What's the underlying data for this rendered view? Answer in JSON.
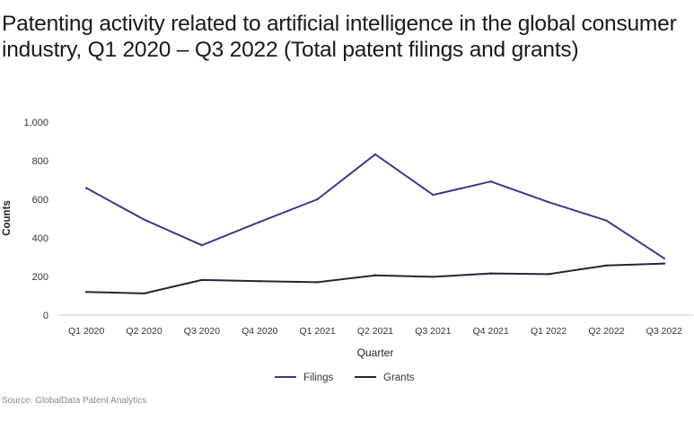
{
  "title": "Patenting activity related to artificial intelligence in the global consumer industry, Q1 2020 – Q3 2022 (Total patent filings and grants)",
  "source": "Source: GlobalData Patent Analytics",
  "chart_data": {
    "type": "line",
    "title": "Patenting activity related to artificial intelligence in the global consumer industry, Q1 2020 – Q3 2022 (Total patent filings and grants)",
    "xlabel": "Quarter",
    "ylabel": "Counts",
    "ylim": [
      0,
      1000
    ],
    "yticks": [
      0,
      200,
      400,
      600,
      800,
      1000
    ],
    "ytick_labels": [
      "0",
      "200",
      "400",
      "600",
      "800",
      "1,000"
    ],
    "grid": false,
    "legend": "bottom-center",
    "categories": [
      "Q1 2020",
      "Q2 2020",
      "Q3 2020",
      "Q4 2020",
      "Q1 2021",
      "Q2 2021",
      "Q3 2021",
      "Q4 2021",
      "Q1 2022",
      "Q2 2022",
      "Q3 2022"
    ],
    "series": [
      {
        "name": "Filings",
        "color": "#3a3a8c",
        "values": [
          658,
          495,
          362,
          483,
          600,
          833,
          623,
          692,
          585,
          490,
          294
        ]
      },
      {
        "name": "Grants",
        "color": "#24243f",
        "values": [
          120,
          112,
          182,
          176,
          170,
          206,
          198,
          216,
          212,
          257,
          267
        ]
      }
    ]
  }
}
